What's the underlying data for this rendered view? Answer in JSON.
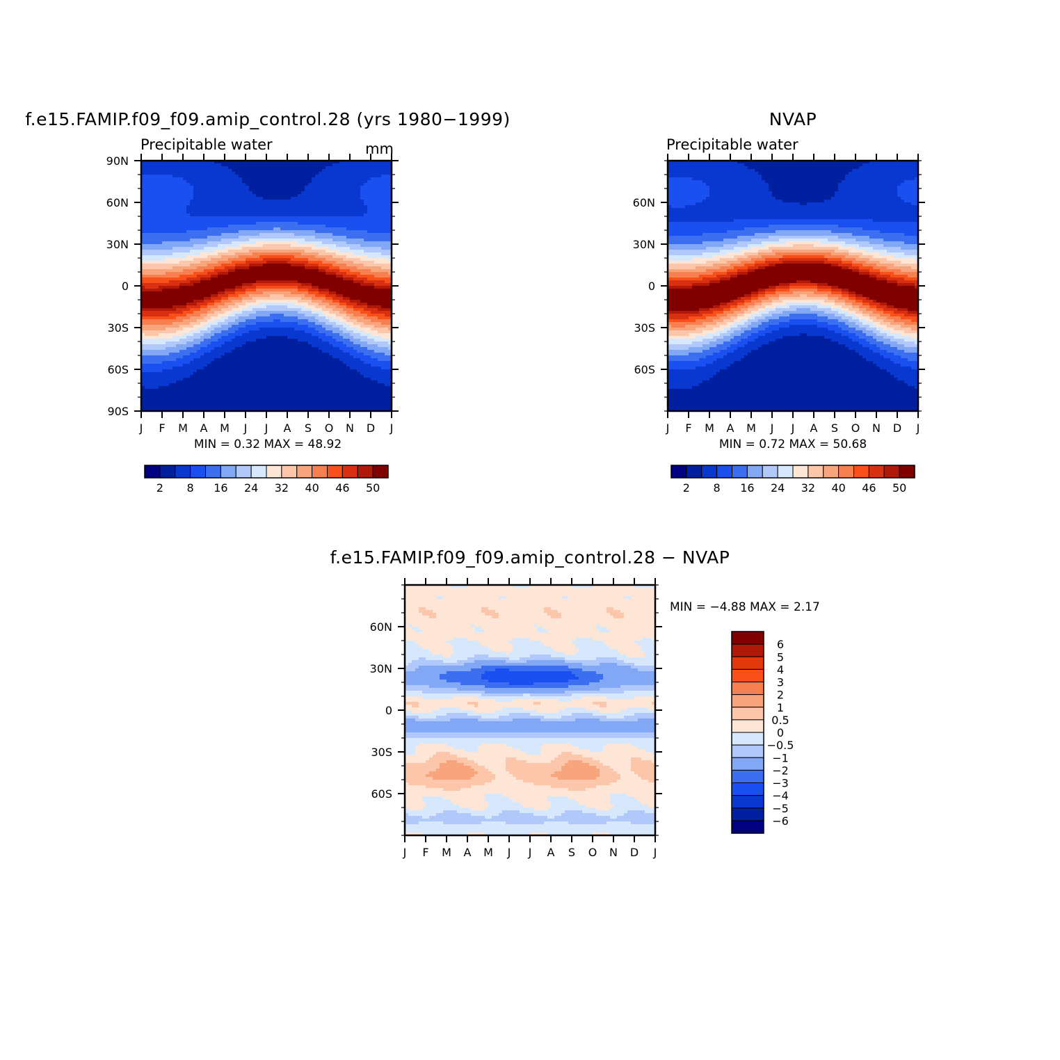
{
  "palette": {
    "blue_red_16": [
      "#000080",
      "#0020a0",
      "#0838d0",
      "#1a50f0",
      "#3c6ef0",
      "#82a8f5",
      "#b0c8fa",
      "#d8e8fc",
      "#fde6d6",
      "#fbc6aa",
      "#f8a47c",
      "#f88050",
      "#f85018",
      "#d83010",
      "#b01808",
      "#800000"
    ],
    "diff_16": [
      "#000080",
      "#0020a0",
      "#0838d0",
      "#1a50f0",
      "#3c6ef0",
      "#82a8f5",
      "#b0c8fa",
      "#d8e8fc",
      "#fde6d6",
      "#fbc6aa",
      "#f8a47c",
      "#f88050",
      "#f85018",
      "#e03808",
      "#b01808",
      "#800000"
    ]
  },
  "chart_data": [
    {
      "id": "model",
      "type": "heatmap",
      "title": "f.e15.FAMIP.f09_f09.amip_control.28 (yrs 1980−1999)",
      "subtitle_left": "Precipitable water",
      "subtitle_right": "mm",
      "x_tick_labels": [
        "J",
        "F",
        "M",
        "A",
        "M",
        "J",
        "J",
        "A",
        "S",
        "O",
        "N",
        "D",
        "J"
      ],
      "y_tick_labels": [
        "90N",
        "60N",
        "30N",
        "0",
        "30S",
        "60S",
        "90S"
      ],
      "y_tick_values": [
        90,
        60,
        30,
        0,
        -30,
        -60,
        -90
      ],
      "ylim": [
        -90,
        90
      ],
      "xlim": [
        0,
        12
      ],
      "field_params": {
        "base": 48.5,
        "width": 30,
        "shift_amp": 10,
        "polar_n": 6,
        "polar_s": 0.6,
        "delta": 0
      },
      "stats_text": "MIN =    0.32  MAX =    48.92",
      "colorbar": {
        "levels": [
          0,
          2,
          5,
          8,
          12,
          16,
          20,
          24,
          28,
          32,
          36,
          40,
          43,
          46,
          48,
          50
        ],
        "tick_labels": [
          "2",
          "8",
          "16",
          "24",
          "32",
          "40",
          "46",
          "50"
        ]
      }
    },
    {
      "id": "obs",
      "type": "heatmap",
      "title": "NVAP",
      "subtitle_left": "Precipitable water",
      "x_tick_labels": [
        "J",
        "F",
        "M",
        "A",
        "M",
        "J",
        "J",
        "A",
        "S",
        "O",
        "N",
        "D",
        "J"
      ],
      "y_tick_labels": [
        "60N",
        "30N",
        "0",
        "30S",
        "60S"
      ],
      "y_tick_values": [
        60,
        30,
        0,
        -30,
        -60
      ],
      "ylim": [
        -90,
        90
      ],
      "xlim": [
        0,
        12
      ],
      "field_params": {
        "base": 50.5,
        "width": 29,
        "shift_amp": 10,
        "polar_n": 5.5,
        "polar_s": 1.0,
        "delta": 0
      },
      "stats_text": "MIN =    0.72  MAX =    50.68",
      "colorbar": {
        "levels": [
          0,
          2,
          5,
          8,
          12,
          16,
          20,
          24,
          28,
          32,
          36,
          40,
          43,
          46,
          48,
          50
        ],
        "tick_labels": [
          "2",
          "8",
          "16",
          "24",
          "32",
          "40",
          "46",
          "50"
        ]
      }
    },
    {
      "id": "diff",
      "type": "heatmap",
      "title": "f.e15.FAMIP.f09_f09.amip_control.28 − NVAP",
      "x_tick_labels": [
        "J",
        "F",
        "M",
        "A",
        "M",
        "J",
        "J",
        "A",
        "S",
        "O",
        "N",
        "D",
        "J"
      ],
      "y_tick_labels": [
        "60N",
        "30N",
        "0",
        "30S",
        "60S"
      ],
      "y_tick_values": [
        60,
        30,
        0,
        -30,
        -60
      ],
      "ylim": [
        -90,
        90
      ],
      "xlim": [
        0,
        12
      ],
      "stats_text": "MIN =   −4.88  MAX =    2.17",
      "colorbar": {
        "levels": [
          -6,
          -5,
          -4,
          -3,
          -2,
          -1,
          -0.5,
          0,
          0.5,
          1,
          2,
          3,
          4,
          5,
          6
        ],
        "tick_labels": [
          "6",
          "5",
          "4",
          "3",
          "2",
          "1",
          "0.5",
          "0",
          "−0.5",
          "−1",
          "−2",
          "−3",
          "−4",
          "−5",
          "−6"
        ]
      }
    }
  ]
}
